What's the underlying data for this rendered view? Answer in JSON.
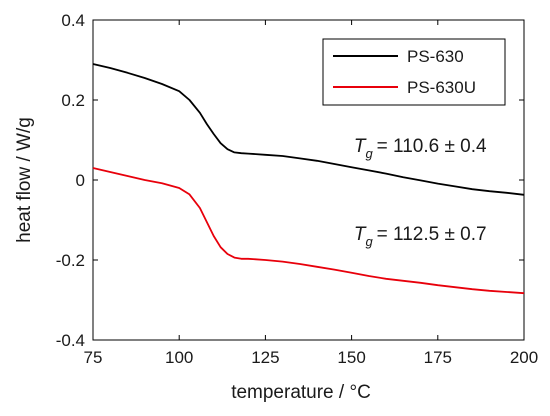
{
  "chart_data": {
    "type": "line",
    "xlabel": "temperature / °C",
    "ylabel": "heat flow / W/g",
    "xlim": [
      75,
      200
    ],
    "ylim": [
      -0.4,
      0.4
    ],
    "xticks": [
      "75",
      "100",
      "125",
      "150",
      "175",
      "200"
    ],
    "yticks": [
      "-0.4",
      "-0.2",
      "0",
      "0.2",
      "0.4"
    ],
    "grid": false,
    "legend_position": "top-right",
    "series": [
      {
        "name": "PS-630",
        "color": "#000000",
        "x": [
          75,
          80,
          85,
          90,
          95,
          100,
          103,
          106,
          108,
          110,
          112,
          114,
          116,
          118,
          120,
          125,
          130,
          135,
          140,
          145,
          150,
          155,
          160,
          165,
          170,
          175,
          180,
          185,
          190,
          195,
          200
        ],
        "y": [
          0.29,
          0.28,
          0.268,
          0.255,
          0.24,
          0.222,
          0.2,
          0.168,
          0.14,
          0.115,
          0.092,
          0.077,
          0.069,
          0.067,
          0.066,
          0.063,
          0.06,
          0.054,
          0.048,
          0.04,
          0.032,
          0.024,
          0.016,
          0.007,
          -0.001,
          -0.009,
          -0.016,
          -0.023,
          -0.028,
          -0.032,
          -0.037
        ]
      },
      {
        "name": "PS-630U",
        "color": "#e8000b",
        "x": [
          75,
          80,
          85,
          90,
          95,
          100,
          103,
          106,
          108,
          110,
          112,
          114,
          116,
          118,
          120,
          125,
          130,
          135,
          140,
          145,
          150,
          155,
          160,
          165,
          170,
          175,
          180,
          185,
          190,
          195,
          200
        ],
        "y": [
          0.03,
          0.02,
          0.01,
          0.0,
          -0.008,
          -0.02,
          -0.036,
          -0.07,
          -0.105,
          -0.14,
          -0.168,
          -0.185,
          -0.194,
          -0.197,
          -0.197,
          -0.2,
          -0.204,
          -0.21,
          -0.217,
          -0.224,
          -0.232,
          -0.24,
          -0.247,
          -0.252,
          -0.257,
          -0.263,
          -0.268,
          -0.273,
          -0.277,
          -0.28,
          -0.283
        ]
      }
    ],
    "annotations": [
      {
        "symbol": "T",
        "subscript": "g",
        "text": "= 110.6 ± 0.4",
        "x": 155,
        "y": 0.07
      },
      {
        "symbol": "T",
        "subscript": "g",
        "text": "= 112.5 ± 0.7",
        "x": 155,
        "y": -0.15
      }
    ]
  }
}
